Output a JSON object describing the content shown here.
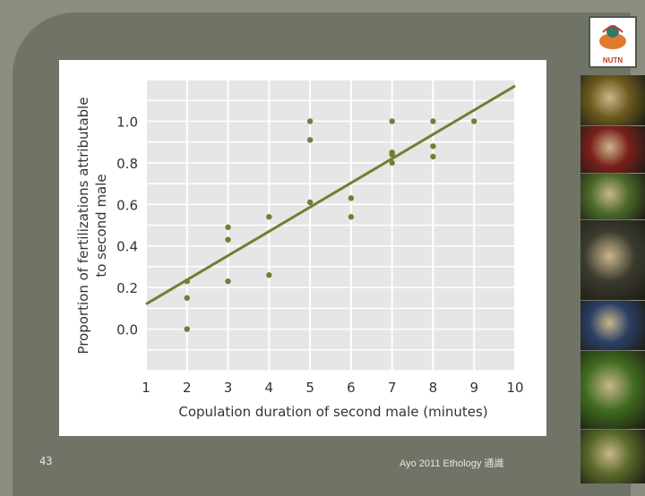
{
  "slide": {
    "page_number": "43",
    "footer": "Ayo 2011 Ethology 通識"
  },
  "logo": {
    "text": "NUTN",
    "icon": "bird-emblem-icon"
  },
  "photos": [
    {
      "name": "photo-mushroom",
      "icon": "mushroom-photo",
      "color": "#6b5a1e"
    },
    {
      "name": "photo-frog-red",
      "icon": "red-frog-photo",
      "color": "#7a1f1a"
    },
    {
      "name": "photo-frog-green",
      "icon": "tree-frog-photo",
      "color": "#4b6a2a"
    },
    {
      "name": "photo-monkey",
      "icon": "marmoset-photo",
      "color": "#3b3a2e"
    },
    {
      "name": "photo-octopus",
      "icon": "octopus-photo",
      "color": "#2a3f66"
    },
    {
      "name": "photo-lizard",
      "icon": "salamander-photo",
      "color": "#3f6b1f"
    },
    {
      "name": "photo-insects",
      "icon": "beetles-photo",
      "color": "#5a6a2a"
    }
  ],
  "chart_data": {
    "type": "scatter",
    "title": "",
    "xlabel": "Copulation duration of second male (minutes)",
    "ylabel": "Proportion of fertilizations attributable to second male",
    "ylabel_lines": [
      "Proportion of fertilizations attributable",
      "to second male"
    ],
    "xlim": [
      1,
      10
    ],
    "ylim": [
      -0.2,
      1.2
    ],
    "x_ticks": [
      "1",
      "2",
      "3",
      "4",
      "5",
      "6",
      "7",
      "8",
      "9",
      "10"
    ],
    "y_ticks": [
      "0.0",
      "0.2",
      "0.4",
      "0.6",
      "0.8",
      "1.0"
    ],
    "y_tick_values": [
      0,
      0.2,
      0.4,
      0.6,
      0.8,
      1.0
    ],
    "grid": true,
    "legend": "none",
    "point_color": "#6f8035",
    "series": [
      {
        "points": [
          {
            "x": 2,
            "y": 0.23
          },
          {
            "x": 2,
            "y": 0.15
          },
          {
            "x": 2,
            "y": 0.0
          },
          {
            "x": 3,
            "y": 0.49
          },
          {
            "x": 3,
            "y": 0.43
          },
          {
            "x": 3,
            "y": 0.23
          },
          {
            "x": 4,
            "y": 0.54
          },
          {
            "x": 4,
            "y": 0.26
          },
          {
            "x": 5,
            "y": 1.0
          },
          {
            "x": 5,
            "y": 0.91
          },
          {
            "x": 5,
            "y": 0.61
          },
          {
            "x": 6,
            "y": 0.63
          },
          {
            "x": 6,
            "y": 0.54
          },
          {
            "x": 7,
            "y": 1.0
          },
          {
            "x": 7,
            "y": 0.85
          },
          {
            "x": 7,
            "y": 0.84
          },
          {
            "x": 7,
            "y": 0.8
          },
          {
            "x": 8,
            "y": 1.0
          },
          {
            "x": 8,
            "y": 0.88
          },
          {
            "x": 8,
            "y": 0.83
          },
          {
            "x": 9,
            "y": 1.0
          }
        ]
      }
    ],
    "trend_line": {
      "x": [
        1,
        10
      ],
      "y": [
        0.12,
        1.17
      ]
    }
  }
}
